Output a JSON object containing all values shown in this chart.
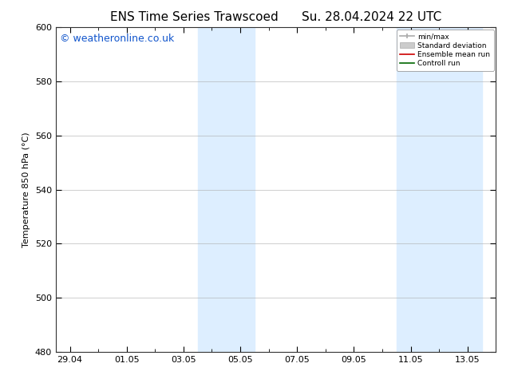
{
  "title_left": "ENS Time Series Trawscoed",
  "title_right": "Su. 28.04.2024 22 UTC",
  "ylabel": "Temperature 850 hPa (°C)",
  "ylim": [
    480,
    600
  ],
  "yticks": [
    480,
    500,
    520,
    540,
    560,
    580,
    600
  ],
  "xlim": [
    -0.5,
    15.0
  ],
  "xtick_labels": [
    "29.04",
    "01.05",
    "03.05",
    "05.05",
    "07.05",
    "09.05",
    "11.05",
    "13.05"
  ],
  "xtick_positions": [
    0,
    2,
    4,
    6,
    8,
    10,
    12,
    14
  ],
  "background_color": "#ffffff",
  "plot_bg_color": "#ffffff",
  "shaded_bands": [
    {
      "x_start": 4.5,
      "x_end": 5.5,
      "color": "#ddeeff"
    },
    {
      "x_start": 5.5,
      "x_end": 6.5,
      "color": "#ddeeff"
    },
    {
      "x_start": 11.5,
      "x_end": 12.5,
      "color": "#ddeeff"
    },
    {
      "x_start": 12.5,
      "x_end": 13.5,
      "color": "#ddeeff"
    },
    {
      "x_start": 13.5,
      "x_end": 14.5,
      "color": "#ddeeff"
    }
  ],
  "watermark_text": "© weatheronline.co.uk",
  "watermark_color": "#1155cc",
  "watermark_fontsize": 9,
  "legend_labels": [
    "min/max",
    "Standard deviation",
    "Ensemble mean run",
    "Controll run"
  ],
  "legend_colors": [
    "#aaaaaa",
    "#cccccc",
    "#cc0000",
    "#006600"
  ],
  "title_fontsize": 11,
  "axis_label_fontsize": 8,
  "tick_fontsize": 8
}
